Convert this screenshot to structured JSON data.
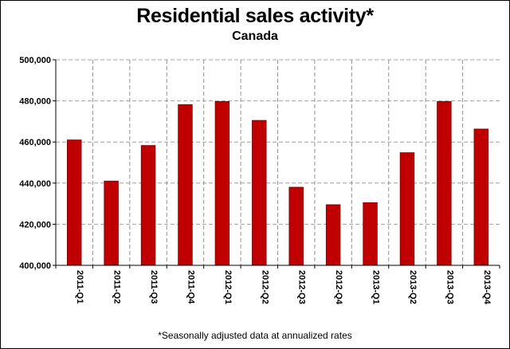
{
  "title": "Residential sales activity*",
  "subtitle": "Canada",
  "footnote": "*Seasonally adjusted data at annualized rates",
  "colors": {
    "bar": "#c00000",
    "bar_stroke": "#7a0000",
    "horizontal_grid": "#a0a0a0",
    "vertical_grid": "#909090",
    "axis": "#000000"
  },
  "chart_data": {
    "type": "bar",
    "title": "Residential sales activity*",
    "subtitle": "Canada",
    "categories": [
      "2011-Q1",
      "2011-Q2",
      "2011-Q3",
      "2011-Q4",
      "2012-Q1",
      "2012-Q2",
      "2012-Q3",
      "2012-Q4",
      "2013-Q1",
      "2013-Q2",
      "2013-Q3",
      "2013-Q4"
    ],
    "series": [
      {
        "values": [
          461000,
          441000,
          458300,
          478200,
          479700,
          470500,
          438000,
          429500,
          430500,
          454800,
          479700,
          466300
        ]
      }
    ],
    "ylim": [
      400000,
      500000
    ],
    "yticks": [
      "400,000",
      "420,000",
      "440,000",
      "460,000",
      "480,000",
      "500,000"
    ],
    "grid": true,
    "legend": "none",
    "note": "*Seasonally adjusted data at annualized rates"
  }
}
